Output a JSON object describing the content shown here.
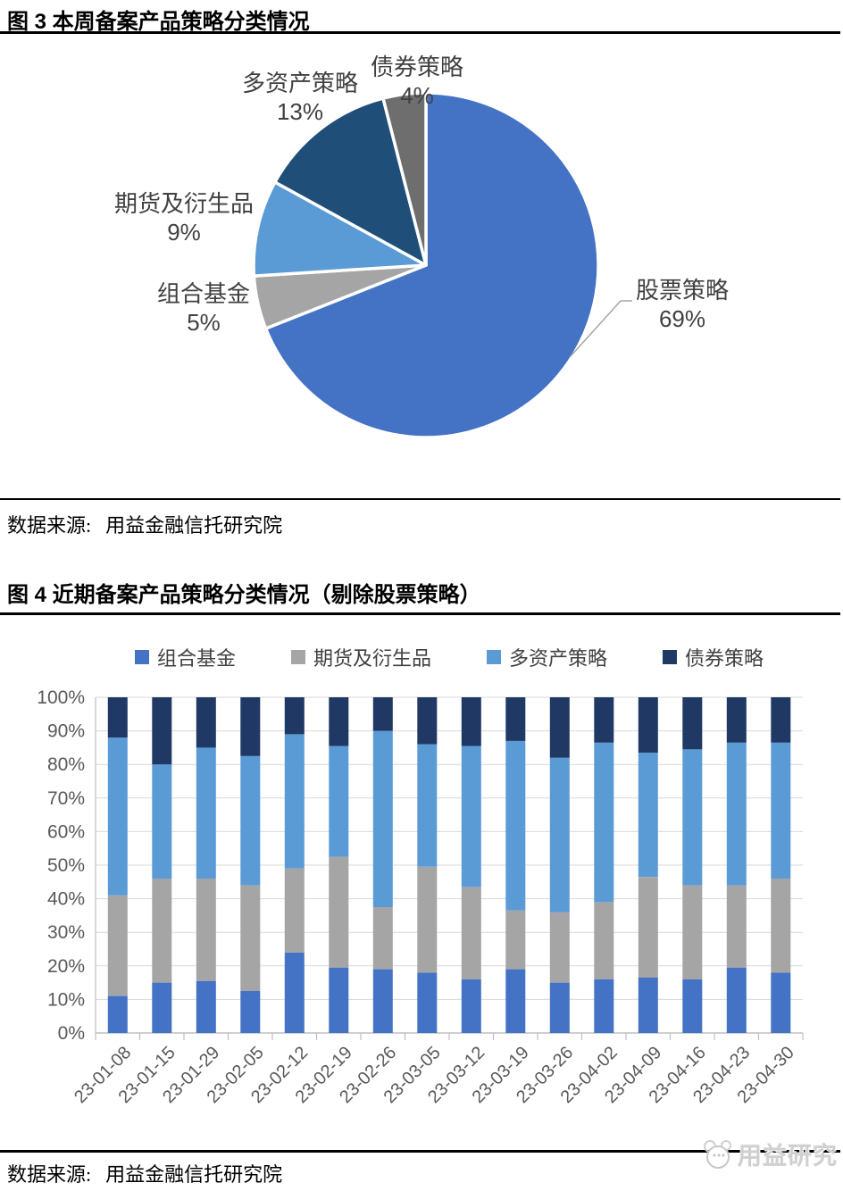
{
  "figure3": {
    "title": "图 3 本周备案产品策略分类情况",
    "source_label": "数据来源:",
    "source_value": "用益金融信托研究院"
  },
  "figure4": {
    "title": "图 4 近期备案产品策略分类情况（剔除股票策略）",
    "source_label": "数据来源:",
    "source_value": "用益金融信托研究院"
  },
  "watermark": {
    "text": "用益研究"
  },
  "chart_data": [
    {
      "type": "pie",
      "title": "本周备案产品策略分类情况",
      "labels": [
        "股票策略",
        "组合基金",
        "期货及衍生品",
        "多资产策略",
        "债券策略"
      ],
      "values": [
        69,
        5,
        9,
        13,
        4
      ],
      "colors": [
        "#4472C4",
        "#A5A5A5",
        "#5B9BD5",
        "#1F4E79",
        "#6E6E6E"
      ],
      "start_angle_deg": 0,
      "direction": "clockwise",
      "label_format": "name + percent",
      "slice_border_color": "#FFFFFF"
    },
    {
      "type": "bar",
      "stacked": true,
      "title": "近期备案产品策略分类情况（剔除股票策略）",
      "categories": [
        "23-01-08",
        "23-01-15",
        "23-01-29",
        "23-02-05",
        "23-02-12",
        "23-02-19",
        "23-02-26",
        "23-03-05",
        "23-03-12",
        "23-03-19",
        "23-03-26",
        "23-04-02",
        "23-04-09",
        "23-04-16",
        "23-04-23",
        "23-04-30"
      ],
      "series": [
        {
          "name": "组合基金",
          "color": "#4472C4",
          "values": [
            11,
            15,
            15.5,
            12.5,
            24,
            19.5,
            19,
            18,
            16,
            19,
            15,
            16,
            16.5,
            16,
            19.5,
            18
          ]
        },
        {
          "name": "期货及衍生品",
          "color": "#A5A5A5",
          "values": [
            30,
            31,
            30.5,
            31.5,
            25,
            33,
            18.5,
            31.5,
            27.5,
            17.5,
            21,
            23,
            30,
            28,
            24.5,
            28
          ]
        },
        {
          "name": "多资产策略",
          "color": "#5B9BD5",
          "values": [
            47,
            34,
            39,
            38.5,
            40,
            33,
            52.5,
            36.5,
            42,
            50.5,
            46,
            47.5,
            37,
            40.5,
            42.5,
            40.5
          ]
        },
        {
          "name": "债券策略",
          "color": "#203864",
          "values": [
            12,
            20,
            15,
            17.5,
            11,
            14.5,
            10,
            14,
            14.5,
            13,
            18,
            13.5,
            16.5,
            15.5,
            13.5,
            13.5
          ]
        }
      ],
      "ylabel": "",
      "ylim": [
        0,
        100
      ],
      "ytick_step": 10,
      "ytick_format": "percent",
      "yticks": [
        "0%",
        "10%",
        "20%",
        "30%",
        "40%",
        "50%",
        "60%",
        "70%",
        "80%",
        "90%",
        "100%"
      ],
      "legend_position": "top",
      "grid": true,
      "grid_color": "#D9D9D9",
      "axis_color": "#BFBFBF",
      "tick_label_color": "#595959"
    }
  ]
}
